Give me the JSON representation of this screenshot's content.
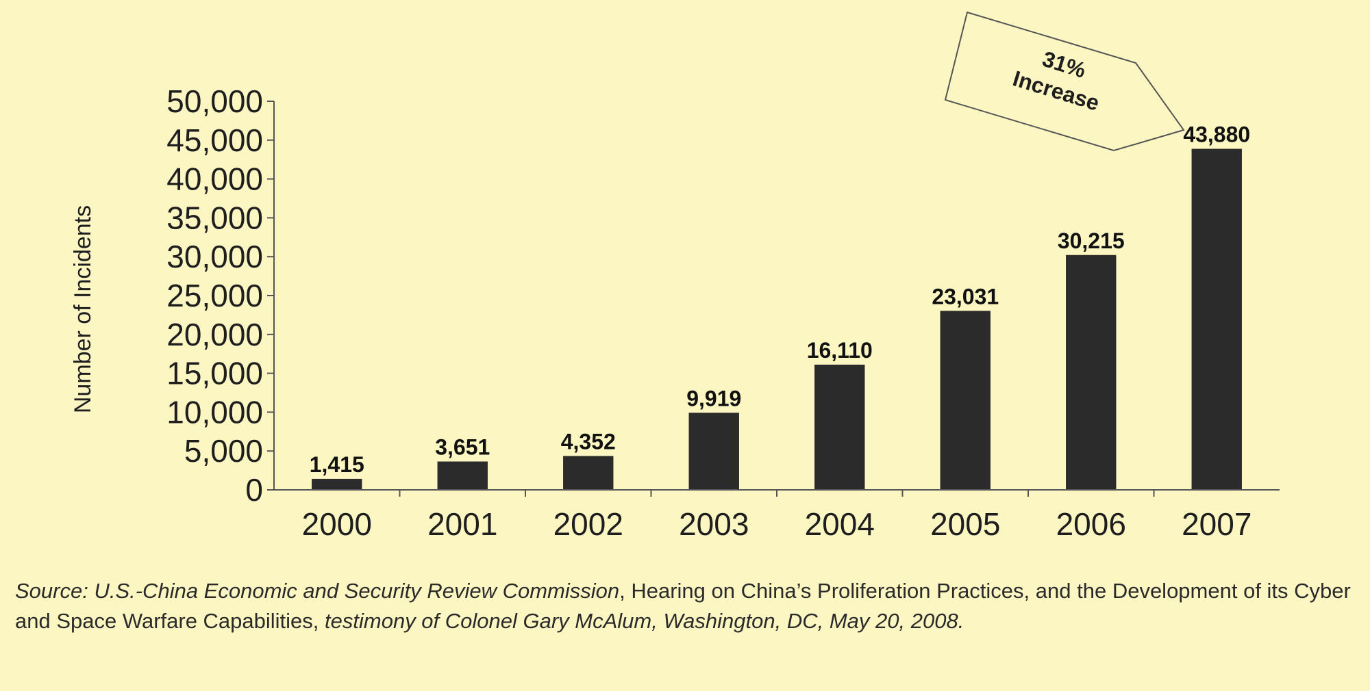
{
  "chart_data": {
    "type": "bar",
    "categories": [
      "2000",
      "2001",
      "2002",
      "2003",
      "2004",
      "2005",
      "2006",
      "2007"
    ],
    "values": [
      1415,
      3651,
      4352,
      9919,
      16110,
      23031,
      30215,
      43880
    ],
    "data_labels": [
      "1,415",
      "3,651",
      "4,352",
      "9,919",
      "16,110",
      "23,031",
      "30,215",
      "43,880"
    ],
    "ylabel": "Number of Incidents",
    "ylim": [
      0,
      50000
    ],
    "yticks": [
      0,
      5000,
      10000,
      15000,
      20000,
      25000,
      30000,
      35000,
      40000,
      45000,
      50000
    ],
    "ytick_labels": [
      "0",
      "5,000",
      "10,000",
      "15,000",
      "20,000",
      "25,000",
      "30,000",
      "35,000",
      "40,000",
      "45,000",
      "50,000"
    ],
    "grid": false,
    "bar_color": "#2b2b2b",
    "annotation": {
      "line1": "31%",
      "line2": "Increase"
    }
  },
  "source": {
    "part1": "Source: U.S.-China Economic and Security Review Commission",
    "part2": ", Hearing on China’s Proliferation Practices, and the Development of its Cyber and Space Warfare Capabilities, ",
    "part3": "testimony of Colonel Gary McAlum, Washington, DC, May 20, 2008."
  }
}
